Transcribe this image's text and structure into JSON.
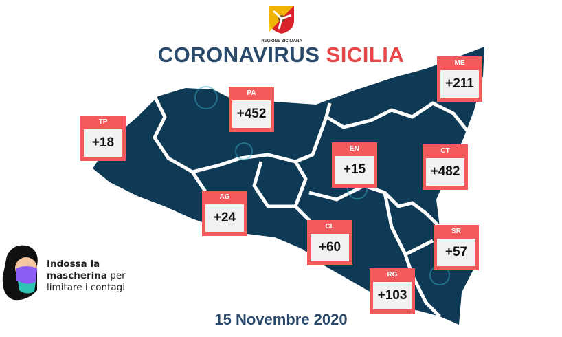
{
  "logo": {
    "caption": "REGIONE SICILIANA"
  },
  "title": {
    "part1": "CORONAVIRUS",
    "part2": "SICILIA"
  },
  "provinces": [
    {
      "code": "TP",
      "value": "+18"
    },
    {
      "code": "PA",
      "value": "+452"
    },
    {
      "code": "ME",
      "value": "+211"
    },
    {
      "code": "EN",
      "value": "+15"
    },
    {
      "code": "CT",
      "value": "+482"
    },
    {
      "code": "AG",
      "value": "+24"
    },
    {
      "code": "CL",
      "value": "+60"
    },
    {
      "code": "SR",
      "value": "+57"
    },
    {
      "code": "RG",
      "value": "+103"
    }
  ],
  "advice": {
    "line1": "Indossa la",
    "line2_bold": "mascherina",
    "line2_rest": " per",
    "line3": "limitare i contagi"
  },
  "date": "15 Novembre 2020",
  "colors": {
    "map": "#0f3a55",
    "card": "#f25a5c",
    "title_blue": "#2b4a6b",
    "title_red": "#e8474a"
  }
}
